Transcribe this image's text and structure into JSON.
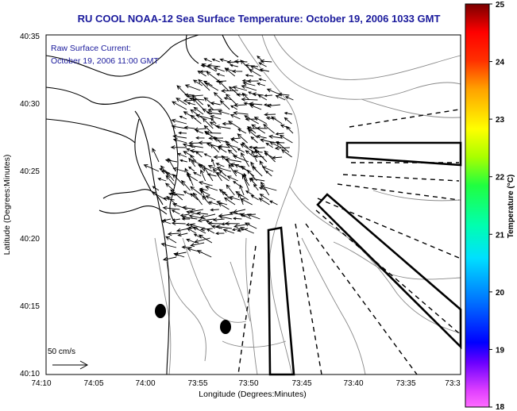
{
  "title": "RU COOL  NOAA-12  Sea Surface Temperature:  October 19, 2006 1033 GMT",
  "annotation": {
    "line1": "Raw Surface Current:",
    "line2": "October 19, 2006 11:00 GMT"
  },
  "x_axis": {
    "label": "Longitude (Degrees:Minutes)",
    "ticks": [
      "74:10",
      "74:05",
      "74:00",
      "73:55",
      "73:50",
      "73:45",
      "73:40",
      "73:35",
      "73:3"
    ]
  },
  "y_axis": {
    "label": "Latitude (Degrees:Minutes)",
    "ticks": [
      "40:35",
      "40:30",
      "40:25",
      "40:20",
      "40:15",
      "40:10"
    ]
  },
  "scale_arrow": {
    "label": "50 cm/s",
    "speed_cm_s": 50
  },
  "colorbar": {
    "label": "Temperature (°C)",
    "ticks": [
      "25",
      "24",
      "23",
      "22",
      "21",
      "20",
      "19",
      "18"
    ],
    "min": 18,
    "max": 25,
    "colors": [
      "#ff00ff",
      "#6b00ff",
      "#0000ff",
      "#0090ff",
      "#00ffff",
      "#00ff90",
      "#00ff00",
      "#a0ff00",
      "#ffff00",
      "#ffa000",
      "#ff3000",
      "#ff0000",
      "#8b0000"
    ]
  },
  "colors": {
    "title_text": "#1a1a9c",
    "coastline": "#000000",
    "bathymetry": "#888888",
    "vectors": "#000000"
  },
  "icons": {
    "vectors": "current-vector-icon",
    "scale": "scale-arrow-icon"
  }
}
